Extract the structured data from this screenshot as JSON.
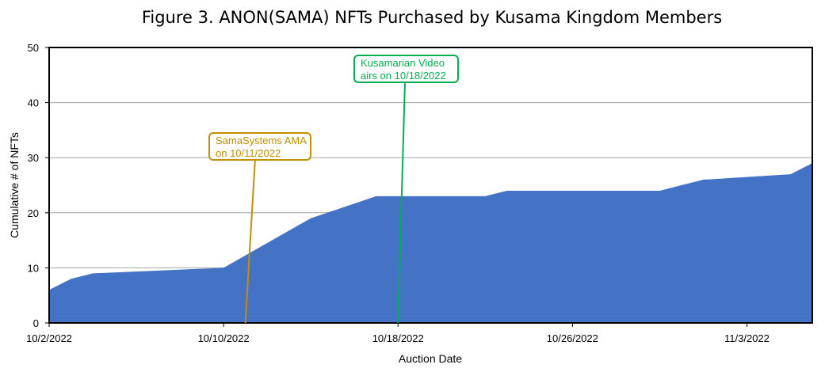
{
  "chart_data": {
    "type": "area",
    "title": "Figure 3. ANON(SAMA) NFTs Purchased by Kusama Kingdom Members",
    "xlabel": "Auction Date",
    "ylabel": "Cumulative # of NFTs",
    "ylim": [
      0,
      50
    ],
    "xlim": [
      "2022-10-02",
      "2022-11-06"
    ],
    "y_ticks": [
      0,
      10,
      20,
      30,
      40,
      50
    ],
    "x_tick_dates": [
      "2022-10-02",
      "2022-10-10",
      "2022-10-18",
      "2022-10-26",
      "2022-11-03"
    ],
    "x_tick_labels": [
      "10/2/2022",
      "10/10/2022",
      "10/18/2022",
      "10/26/2022",
      "11/3/2022"
    ],
    "grid": true,
    "legend": "none",
    "series": [
      {
        "color": "#4472C4",
        "x": [
          "2022-10-02",
          "2022-10-03",
          "2022-10-04",
          "2022-10-10",
          "2022-10-14",
          "2022-10-17",
          "2022-10-18",
          "2022-10-22",
          "2022-10-23",
          "2022-10-30",
          "2022-11-01",
          "2022-11-05",
          "2022-11-06"
        ],
        "y": [
          6,
          8,
          9,
          10,
          19,
          23,
          23,
          23,
          24,
          24,
          26,
          27,
          29
        ]
      }
    ],
    "annotations": [
      {
        "date": "2022-10-11",
        "label_line1": "SamaSystems AMA",
        "label_line2": "on 10/11/2022",
        "color": "#BF9000"
      },
      {
        "date": "2022-10-18",
        "label_line1": "Kusamarian Video",
        "label_line2": "airs on 10/18/2022",
        "color": "#00B050"
      }
    ]
  }
}
